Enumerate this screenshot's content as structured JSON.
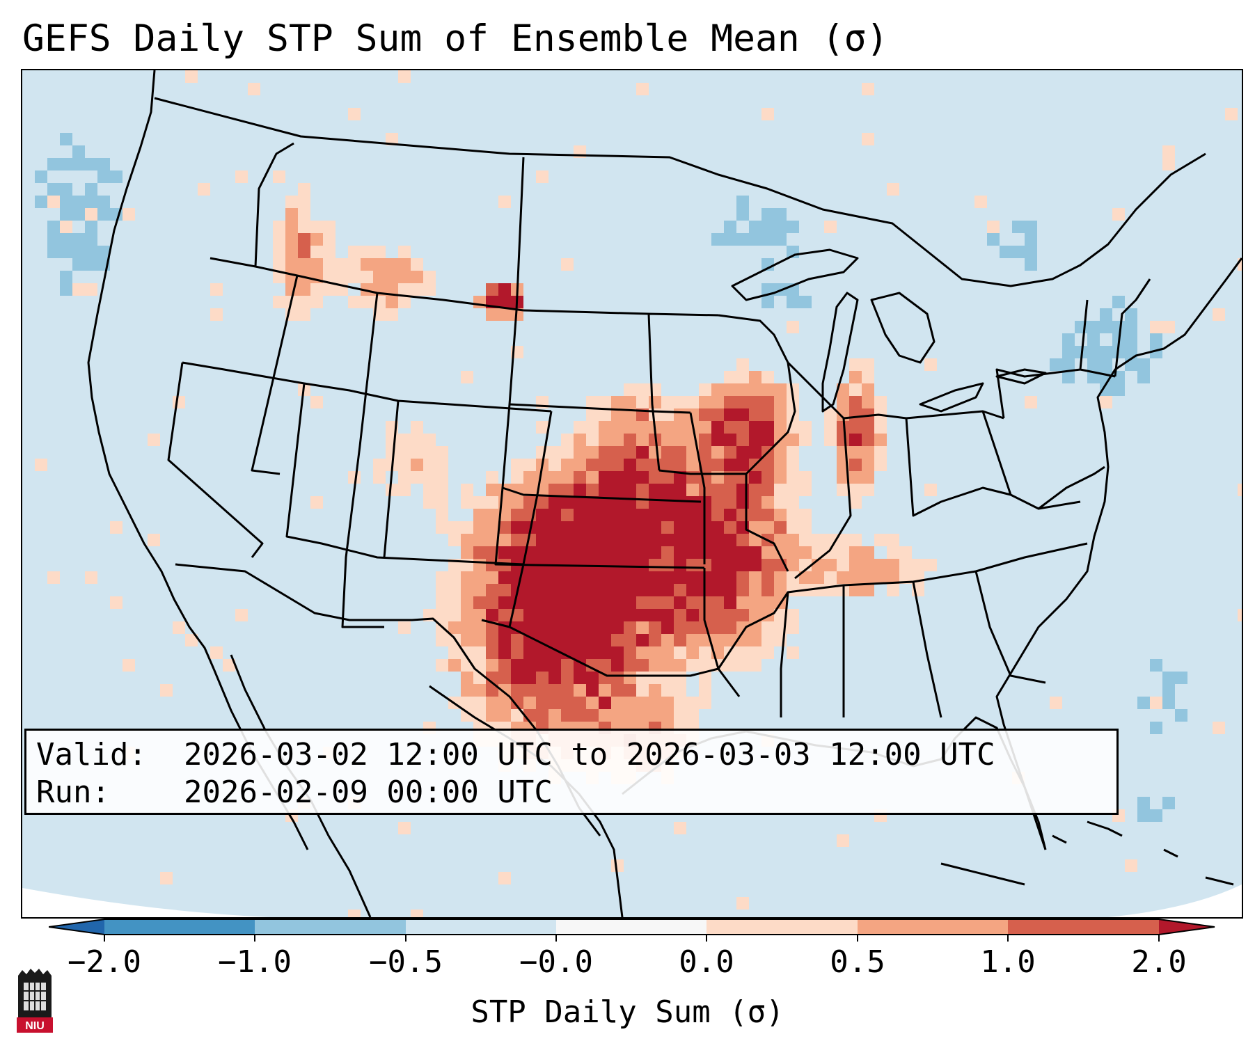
{
  "title": "GEFS Daily STP Sum of Ensemble Mean (σ)",
  "info": {
    "valid_label": "Valid:",
    "valid_value": "2026-03-02 12:00 UTC to 2026-03-03 12:00 UTC",
    "run_label": "Run:",
    "run_value": "2026-02-09 00:00 UTC"
  },
  "colorbar": {
    "label": "STP Daily Sum (σ)",
    "tick_labels": [
      "−2.0",
      "−1.0",
      "−0.5",
      "−0.0",
      "0.0",
      "0.5",
      "1.0",
      "2.0"
    ],
    "colors": {
      "under": "#2166ac",
      "bin_m2_m1": "#4393c3",
      "bin_m1_m05": "#92c5de",
      "bin_m05_m0": "#d1e5f0",
      "bin_m0_p0": "#f7f7f7",
      "bin_0_05": "#fddbc7",
      "bin_05_1": "#f4a582",
      "bin_1_2": "#d6604d",
      "over": "#b2182b"
    }
  },
  "map_legend": {
    "background_class": "-0.5 to 0",
    "features": [
      "state borders",
      "international borders",
      "coastlines",
      "Great Lakes"
    ]
  },
  "logo": {
    "name": "niu-logo",
    "text": "NIU"
  }
}
